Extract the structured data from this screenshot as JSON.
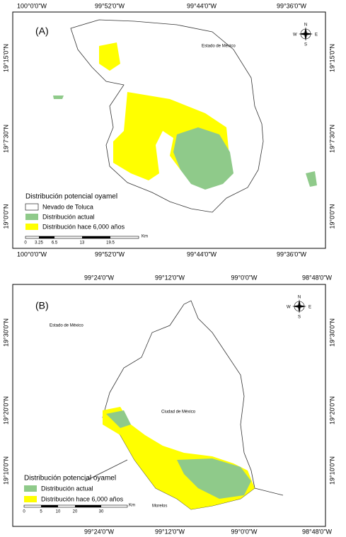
{
  "panel_a": {
    "label": "(A)",
    "top_labels": [
      "100°0'0\"W",
      "99°52'0\"W",
      "99°44'0\"W",
      "99°36'0\"W"
    ],
    "bottom_labels": [
      "100°0'0\"W",
      "99°52'0\"W",
      "99°44'0\"W",
      "99°36'0\"W"
    ],
    "left_labels": [
      "19°15'0\"N",
      "19°7'30\"N",
      "19°0'0\"N"
    ],
    "right_labels": [
      "19°15'0\"N",
      "19°7'30\"N",
      "19°0'0\"N"
    ],
    "regions": [
      "Estado de México"
    ],
    "compass": [
      "N",
      "S",
      "E",
      "W"
    ],
    "legend": {
      "title": "Distribución potencial oyamel",
      "items": [
        "Nevado de Toluca",
        "Distribución actual",
        "Distribución hace 6,000 años"
      ]
    },
    "scale": {
      "ticks": [
        "0",
        "3.25",
        "6.5",
        "13",
        "19.5"
      ],
      "unit": "Km"
    }
  },
  "panel_b": {
    "label": "(B)",
    "top_labels": [
      "99°24'0\"W",
      "99°12'0\"W",
      "99°0'0\"W",
      "98°48'0\"W"
    ],
    "bottom_labels": [
      "99°24'0\"W",
      "99°12'0\"W",
      "99°0'0\"W",
      "98°48'0\"W"
    ],
    "left_labels": [
      "19°30'0\"N",
      "19°20'0\"N",
      "19°10'0\"N"
    ],
    "right_labels": [
      "19°30'0\"N",
      "19°20'0\"N",
      "19°10'0\"N"
    ],
    "regions": [
      "Estado de México",
      "Ciudad de México",
      "Morelos"
    ],
    "compass": [
      "N",
      "S",
      "E",
      "W"
    ],
    "legend": {
      "title": "Distribución potencial oyamel",
      "items": [
        "Distribución actual",
        "Distribución hace 6,000 años"
      ]
    },
    "scale": {
      "ticks": [
        "0",
        "5",
        "10",
        "20",
        "30"
      ],
      "unit": "Km"
    }
  }
}
